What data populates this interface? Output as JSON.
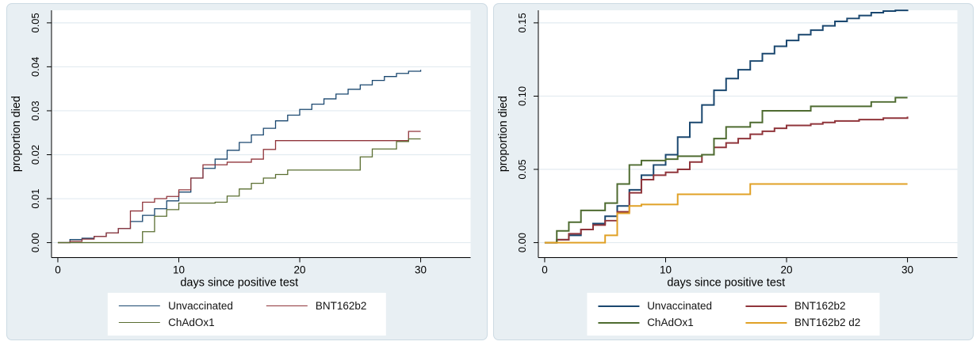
{
  "figure": {
    "background": "#ffffff",
    "panel_background": "#e8eff3",
    "panel_border": "#ccdae3",
    "plot_background": "#ffffff",
    "grid_color": "#e2ebf0",
    "axis_color": "#000000",
    "text_color": "#000000"
  },
  "chart_data": [
    {
      "type": "line",
      "subtype": "kaplan-meier-step",
      "title": "",
      "xlabel": "days since positive test",
      "ylabel": "proportion died",
      "xlim": [
        0,
        30
      ],
      "ylim": [
        0,
        0.05
      ],
      "xticks": [
        0,
        10,
        20,
        30
      ],
      "xtick_labels": [
        "0",
        "10",
        "20",
        "30"
      ],
      "yticks": [
        0,
        0.01,
        0.02,
        0.03,
        0.04,
        0.05
      ],
      "ytick_labels": [
        "0.00",
        "0.01",
        "0.02",
        "0.03",
        "0.04",
        "0.05"
      ],
      "grid": "horizontal",
      "legend_position": "bottom",
      "line_width": 1.3,
      "x": [
        0,
        1,
        2,
        3,
        4,
        5,
        6,
        7,
        8,
        9,
        10,
        11,
        12,
        13,
        14,
        15,
        16,
        17,
        18,
        19,
        20,
        21,
        22,
        23,
        24,
        25,
        26,
        27,
        28,
        29,
        30
      ],
      "series": [
        {
          "name": "Unvaccinated",
          "color": "#1a476f",
          "y": [
            0,
            0.0007,
            0.001,
            0.0014,
            0.0022,
            0.0032,
            0.0048,
            0.0062,
            0.0077,
            0.0095,
            0.0115,
            0.0147,
            0.0169,
            0.019,
            0.021,
            0.0228,
            0.0245,
            0.026,
            0.0277,
            0.029,
            0.0303,
            0.0315,
            0.0327,
            0.0338,
            0.0349,
            0.0359,
            0.0369,
            0.0378,
            0.0385,
            0.039,
            0.0393
          ]
        },
        {
          "name": "BNT162b2",
          "color": "#90353b",
          "y": [
            0,
            0.0003,
            0.0008,
            0.0014,
            0.0022,
            0.0032,
            0.0072,
            0.0092,
            0.01,
            0.0105,
            0.012,
            0.0147,
            0.0177,
            0.0177,
            0.0183,
            0.0183,
            0.019,
            0.0212,
            0.0232,
            0.0232,
            0.0232,
            0.0232,
            0.0232,
            0.0232,
            0.0232,
            0.0232,
            0.0232,
            0.0232,
            0.0232,
            0.0253,
            0.0253
          ]
        },
        {
          "name": "ChAdOx1",
          "color": "#5a6e31",
          "y": [
            0,
            0,
            0,
            0,
            0,
            0,
            0,
            0.0025,
            0.006,
            0.0075,
            0.009,
            0.009,
            0.009,
            0.0092,
            0.0106,
            0.0122,
            0.0135,
            0.0147,
            0.0155,
            0.0165,
            0.0165,
            0.0165,
            0.0165,
            0.0165,
            0.0165,
            0.0195,
            0.0213,
            0.0213,
            0.023,
            0.0236,
            0.0236
          ]
        }
      ]
    },
    {
      "type": "line",
      "subtype": "kaplan-meier-step",
      "title": "",
      "xlabel": "days since positive test",
      "ylabel": "proportion died",
      "xlim": [
        0,
        30
      ],
      "ylim": [
        0,
        0.15
      ],
      "xticks": [
        0,
        10,
        20,
        30
      ],
      "xtick_labels": [
        "0",
        "10",
        "20",
        "30"
      ],
      "yticks": [
        0,
        0.05,
        0.1,
        0.15
      ],
      "ytick_labels": [
        "0.00",
        "0.05",
        "0.10",
        "0.15"
      ],
      "grid": "horizontal",
      "legend_position": "bottom",
      "line_width": 2,
      "x": [
        0,
        1,
        2,
        3,
        4,
        5,
        6,
        7,
        8,
        9,
        10,
        11,
        12,
        13,
        14,
        15,
        16,
        17,
        18,
        19,
        20,
        21,
        22,
        23,
        24,
        25,
        26,
        27,
        28,
        29,
        30
      ],
      "series": [
        {
          "name": "Unvaccinated",
          "color": "#1a476f",
          "y": [
            0,
            0.002,
            0.005,
            0.009,
            0.013,
            0.018,
            0.025,
            0.036,
            0.046,
            0.053,
            0.06,
            0.072,
            0.082,
            0.094,
            0.104,
            0.112,
            0.118,
            0.124,
            0.129,
            0.134,
            0.138,
            0.142,
            0.145,
            0.148,
            0.151,
            0.153,
            0.155,
            0.157,
            0.158,
            0.1585,
            0.159
          ]
        },
        {
          "name": "BNT162b2",
          "color": "#90353b",
          "y": [
            0,
            0.002,
            0.006,
            0.009,
            0.012,
            0.015,
            0.021,
            0.034,
            0.043,
            0.046,
            0.048,
            0.05,
            0.055,
            0.06,
            0.065,
            0.068,
            0.071,
            0.074,
            0.076,
            0.078,
            0.08,
            0.08,
            0.081,
            0.082,
            0.083,
            0.083,
            0.084,
            0.084,
            0.085,
            0.085,
            0.086
          ]
        },
        {
          "name": "ChAdOx1",
          "color": "#4e6b30",
          "y": [
            0,
            0.008,
            0.014,
            0.022,
            0.022,
            0.027,
            0.04,
            0.053,
            0.056,
            0.056,
            0.057,
            0.059,
            0.059,
            0.06,
            0.071,
            0.079,
            0.079,
            0.082,
            0.09,
            0.09,
            0.09,
            0.09,
            0.093,
            0.093,
            0.093,
            0.093,
            0.093,
            0.096,
            0.096,
            0.099,
            0.099
          ]
        },
        {
          "name": "BNT162b2 d2",
          "color": "#e0a126",
          "y": [
            0,
            0,
            0,
            0,
            0,
            0.005,
            0.02,
            0.025,
            0.026,
            0.026,
            0.026,
            0.033,
            0.033,
            0.033,
            0.033,
            0.033,
            0.033,
            0.04,
            0.04,
            0.04,
            0.04,
            0.04,
            0.04,
            0.04,
            0.04,
            0.04,
            0.04,
            0.04,
            0.04,
            0.04,
            0.04
          ]
        }
      ]
    }
  ]
}
